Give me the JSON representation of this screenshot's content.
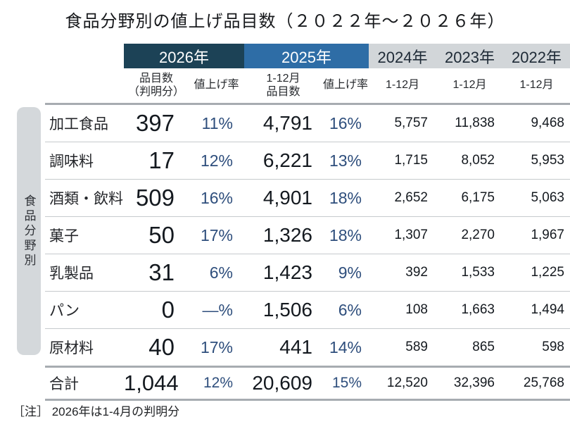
{
  "title": "食品分野別の値上げ品目数（２０２２年～２０２６年）",
  "note": "［注］ 2026年は1-4月の判明分",
  "sidebar": {
    "label": "食品分野別"
  },
  "colors": {
    "band_2026": "#1c4256",
    "band_2025": "#2e6da6",
    "band_prev_years": "#d2d6d9",
    "sidebar_bg": "#d4d8db",
    "percent_text": "#2e4e7c",
    "number_text": "#14191f",
    "thick_rule": "#a7acb1",
    "thin_rule": "#c6cacd"
  },
  "header": {
    "y2026": "2026年",
    "y2025": "2025年",
    "y2024": "2024年",
    "y2023": "2023年",
    "y2022": "2022年",
    "sub_count26_line1": "品目数",
    "sub_count26_line2": "（判明分）",
    "sub_rate26": "値上げ率",
    "sub_count25_line1": "1-12月",
    "sub_count25_line2": "品目数",
    "sub_rate25": "値上げ率",
    "sub_2024": "1-12月",
    "sub_2023": "1-12月",
    "sub_2022": "1-12月"
  },
  "chart_data": {
    "type": "table",
    "title": "食品分野別の値上げ品目数（２０２２年～２０２６年）",
    "row_axis_label": "食品分野別",
    "column_groups": [
      {
        "year": "2026年",
        "columns": [
          "品目数（判明分）",
          "値上げ率"
        ]
      },
      {
        "year": "2025年",
        "columns": [
          "1-12月品目数",
          "値上げ率"
        ]
      },
      {
        "year": "2024年",
        "columns": [
          "1-12月"
        ]
      },
      {
        "year": "2023年",
        "columns": [
          "1-12月"
        ]
      },
      {
        "year": "2022年",
        "columns": [
          "1-12月"
        ]
      }
    ],
    "rows": [
      {
        "category": "加工食品",
        "values": [
          "397",
          "11%",
          "4,791",
          "16%",
          "5,757",
          "11,838",
          "9,468"
        ]
      },
      {
        "category": "調味料",
        "values": [
          "17",
          "12%",
          "6,221",
          "13%",
          "1,715",
          "8,052",
          "5,953"
        ]
      },
      {
        "category": "酒類・飲料",
        "values": [
          "509",
          "16%",
          "4,901",
          "18%",
          "2,652",
          "6,175",
          "5,063"
        ]
      },
      {
        "category": "菓子",
        "values": [
          "50",
          "17%",
          "1,326",
          "18%",
          "1,307",
          "2,270",
          "1,967"
        ]
      },
      {
        "category": "乳製品",
        "values": [
          "31",
          "6%",
          "1,423",
          "9%",
          "392",
          "1,533",
          "1,225"
        ]
      },
      {
        "category": "パン",
        "values": [
          "0",
          "—%",
          "1,506",
          "6%",
          "108",
          "1,663",
          "1,494"
        ]
      },
      {
        "category": "原材料",
        "values": [
          "40",
          "17%",
          "441",
          "14%",
          "589",
          "865",
          "598"
        ]
      }
    ],
    "total_row": {
      "category": "合計",
      "values": [
        "1,044",
        "12%",
        "20,609",
        "15%",
        "12,520",
        "32,396",
        "25,768"
      ]
    },
    "note": "2026年は1-4月の判明分"
  }
}
